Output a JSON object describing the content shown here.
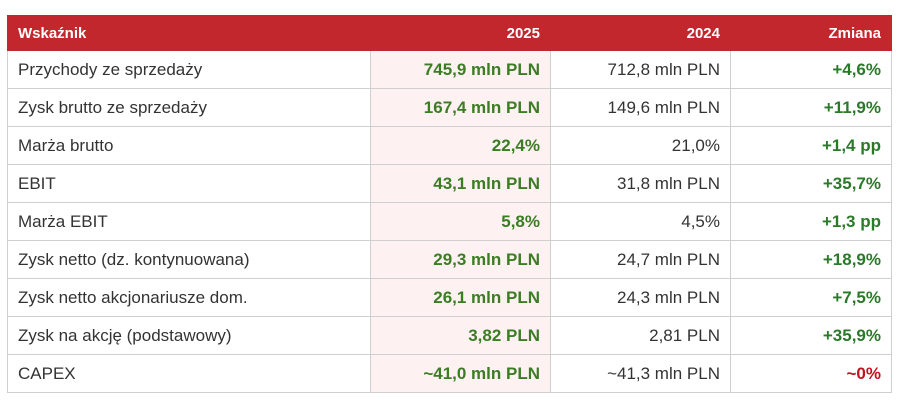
{
  "header": {
    "columns": [
      "Wskaźnik",
      "2025",
      "2024",
      "Zmiana"
    ]
  },
  "table": {
    "rows": [
      [
        "Przychody ze sprzedaży",
        "745,9 mln PLN",
        "712,8 mln PLN",
        "+4,6%"
      ],
      [
        "Zysk brutto ze sprzedaży",
        "167,4 mln PLN",
        "149,6 mln PLN",
        "+11,9%"
      ],
      [
        "Marża brutto",
        "22,4%",
        "21,0%",
        "+1,4 pp"
      ],
      [
        "EBIT",
        "43,1 mln PLN",
        "31,8 mln PLN",
        "+35,7%"
      ],
      [
        "Marża EBIT",
        "5,8%",
        "4,5%",
        "+1,3 pp"
      ],
      [
        "Zysk netto (dz. kontynuowana)",
        "29,3 mln PLN",
        "24,7 mln PLN",
        "+18,9%"
      ],
      [
        "Zysk netto akcjonariusze dom.",
        "26,1 mln PLN",
        "24,3 mln PLN",
        "+7,5%"
      ],
      [
        "Zysk na akcję (podstawowy)",
        "3,82 PLN",
        "2,81 PLN",
        "+35,9%"
      ],
      [
        "CAPEX",
        "~41,0 mln PLN",
        "~41,3 mln PLN",
        "~0%"
      ]
    ]
  }
}
